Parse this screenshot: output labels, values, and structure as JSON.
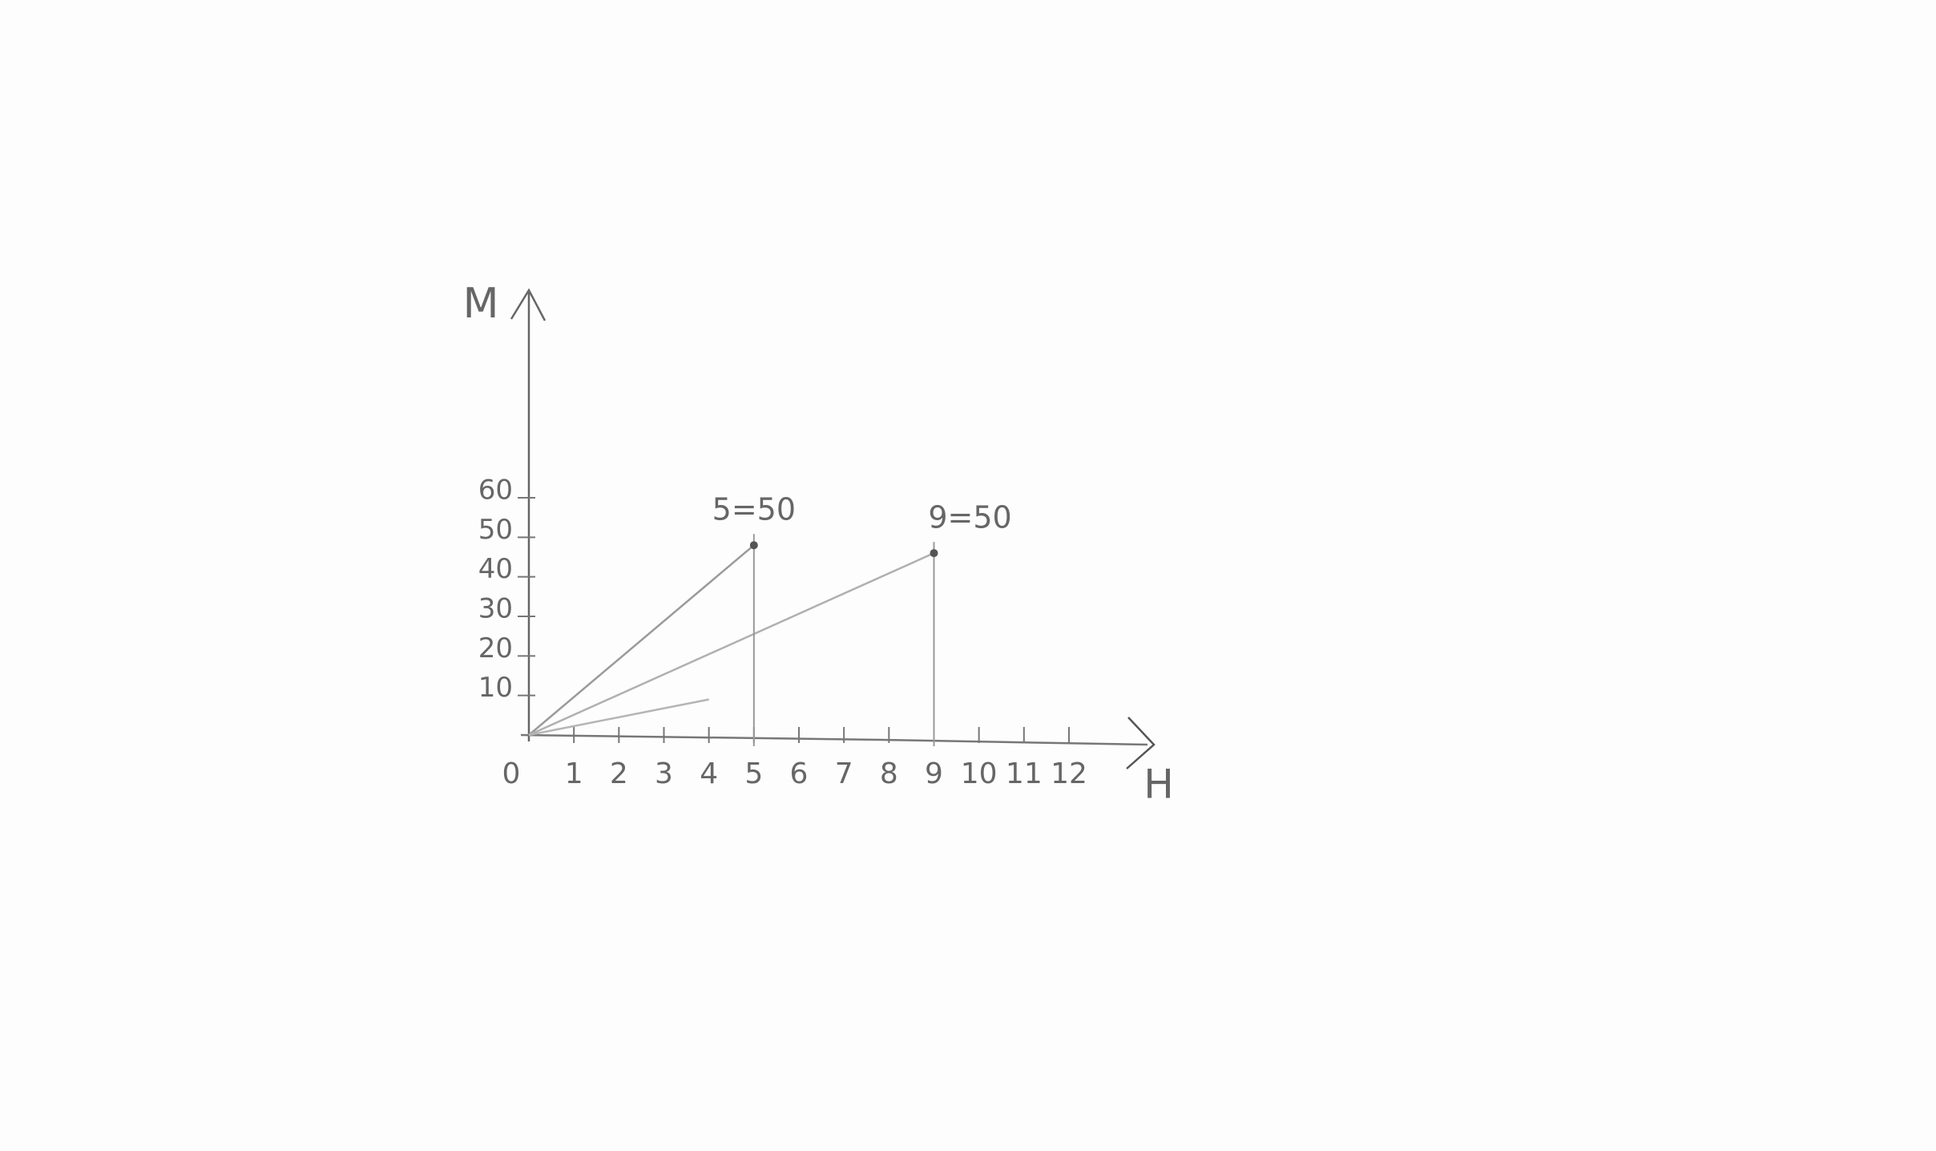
{
  "chart_data": {
    "type": "line",
    "xlabel": "H",
    "ylabel": "M",
    "xlim": [
      0,
      12
    ],
    "ylim": [
      0,
      60
    ],
    "xticks": [
      0,
      1,
      2,
      3,
      4,
      5,
      6,
      7,
      8,
      9,
      10,
      11,
      12
    ],
    "yticks": [
      10,
      20,
      30,
      40,
      50,
      60
    ],
    "series": [
      {
        "color": "#9a9a9a",
        "x": [
          0,
          5
        ],
        "values": [
          0,
          48
        ]
      },
      {
        "color": "#b0b0b0",
        "x": [
          0,
          9
        ],
        "values": [
          0,
          46
        ]
      },
      {
        "color": "#b5b5b5",
        "x": [
          0,
          4
        ],
        "values": [
          0,
          9
        ]
      }
    ],
    "annotations": [
      {
        "text": "5=50",
        "x": 5,
        "y": 48
      },
      {
        "text": "9=50",
        "x": 9,
        "y": 46
      }
    ]
  }
}
